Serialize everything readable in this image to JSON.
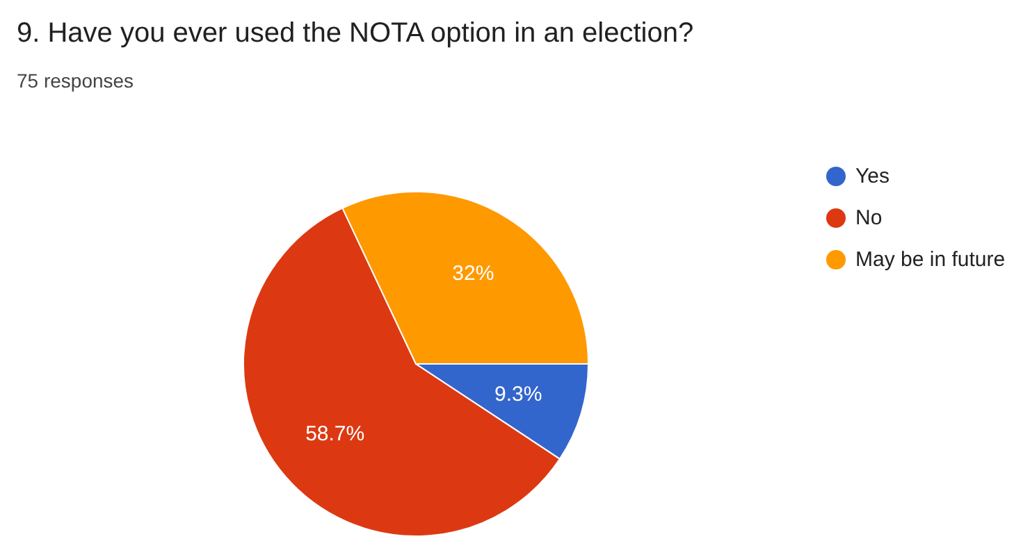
{
  "chart_data": {
    "type": "pie",
    "title": "9. Have you ever used the NOTA option in an election?",
    "subtitle": "75 responses",
    "categories": [
      "Yes",
      "No",
      "May be in future"
    ],
    "values": [
      9.3,
      58.7,
      32
    ],
    "colors": [
      "#3366cc",
      "#dc3912",
      "#ff9900"
    ],
    "value_labels": [
      "9.3%",
      "58.7%",
      "32%"
    ],
    "legend": "right"
  }
}
